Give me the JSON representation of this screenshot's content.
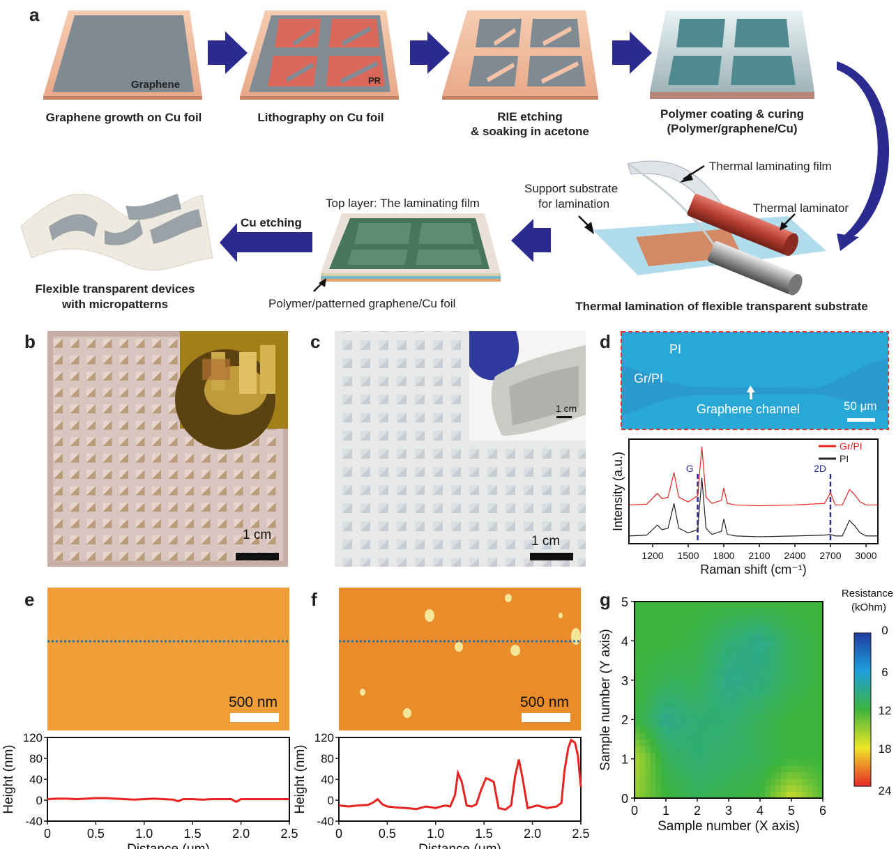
{
  "panel_letters": {
    "a": "a",
    "b": "b",
    "c": "c",
    "d": "d",
    "e": "e",
    "f": "f",
    "g": "g"
  },
  "panel_a": {
    "step1_caption": "Graphene growth on Cu foil",
    "step1_label": "Graphene",
    "step2_caption": "Lithography on Cu foil",
    "step2_label": "PR",
    "step3_caption_line1": "RIE etching",
    "step3_caption_line2": "& soaking in acetone",
    "step4_caption_line1": "Polymer coating & curing",
    "step4_caption_line2": "(Polymer/graphene/Cu)",
    "lamination_film_label": "Thermal laminating film",
    "support_substrate_line1": "Support substrate",
    "support_substrate_line2": "for lamination",
    "laminator_label": "Thermal laminator",
    "lamination_caption": "Thermal lamination of flexible transparent substrate",
    "top_layer_label": "Top layer: The laminating film",
    "bottom_layer_label": "Polymer/patterned graphene/Cu foil",
    "cu_etching_label": "Cu etching",
    "final_caption_line1": "Flexible transparent devices",
    "final_caption_line2": "with micropatterns"
  },
  "panel_b": {
    "scalebar": "1 cm"
  },
  "panel_c": {
    "scalebar": "1 cm",
    "inset_scalebar": "1 cm"
  },
  "panel_d": {
    "image_labels": {
      "pi": "PI",
      "gr_pi": "Gr/PI",
      "channel": "Graphene channel",
      "scalebar": "50 μm"
    }
  },
  "panel_e": {
    "scalebar": "500 nm"
  },
  "panel_f": {
    "scalebar": "500 nm"
  },
  "chart_data": [
    {
      "id": "d-raman",
      "type": "line",
      "xlabel": "Raman shift (cm⁻¹)",
      "ylabel": "Intensity (a.u.)",
      "xlim": [
        1000,
        3100
      ],
      "xticks": [
        1200,
        1500,
        1800,
        2100,
        2400,
        2700,
        3000
      ],
      "legend_position": "top-right",
      "annotations": [
        {
          "text": "G",
          "x": 1580
        },
        {
          "text": "2D",
          "x": 2700
        }
      ],
      "series": [
        {
          "name": "Gr/PI",
          "color": "#e8231f",
          "x": [
            1000,
            1150,
            1240,
            1280,
            1330,
            1380,
            1420,
            1500,
            1580,
            1615,
            1650,
            1700,
            1780,
            1800,
            1830,
            1900,
            2100,
            2400,
            2650,
            2700,
            2740,
            2800,
            2860,
            2900,
            2950,
            3000,
            3100
          ],
          "y": [
            0.2,
            0.21,
            0.35,
            0.28,
            0.3,
            0.62,
            0.3,
            0.24,
            0.32,
            0.95,
            0.3,
            0.22,
            0.26,
            0.42,
            0.22,
            0.2,
            0.19,
            0.2,
            0.22,
            0.36,
            0.2,
            0.2,
            0.4,
            0.34,
            0.24,
            0.2,
            0.2
          ]
        },
        {
          "name": "PI",
          "color": "#222222",
          "x": [
            1000,
            1150,
            1240,
            1280,
            1330,
            1380,
            1420,
            1500,
            1580,
            1615,
            1650,
            1700,
            1780,
            1800,
            1830,
            1900,
            2100,
            2400,
            2650,
            2700,
            2740,
            2800,
            2860,
            2900,
            2950,
            3000,
            3100
          ],
          "y": [
            -0.2,
            -0.19,
            -0.06,
            -0.12,
            -0.1,
            0.22,
            -0.1,
            -0.16,
            -0.12,
            0.55,
            -0.1,
            -0.18,
            -0.14,
            0.02,
            -0.18,
            -0.2,
            -0.21,
            -0.2,
            -0.19,
            -0.18,
            -0.2,
            -0.2,
            0.0,
            -0.06,
            -0.16,
            -0.2,
            -0.2
          ]
        }
      ]
    },
    {
      "id": "e-profile",
      "type": "line",
      "xlabel": "Distance (μm)",
      "ylabel": "Height (nm)",
      "xlim": [
        0,
        2.5
      ],
      "ylim": [
        -40,
        120
      ],
      "xticks": [
        0,
        0.5,
        1.0,
        1.5,
        2.0,
        2.5
      ],
      "yticks": [
        -40,
        0,
        40,
        80,
        120
      ],
      "series": [
        {
          "color": "#e8231f",
          "x": [
            0,
            0.1,
            0.2,
            0.3,
            0.4,
            0.5,
            0.6,
            0.7,
            0.8,
            0.9,
            1.0,
            1.1,
            1.2,
            1.3,
            1.35,
            1.4,
            1.5,
            1.6,
            1.7,
            1.8,
            1.9,
            1.95,
            2.0,
            2.1,
            2.2,
            2.3,
            2.4,
            2.5
          ],
          "y": [
            2,
            3,
            3,
            2,
            3,
            4,
            4,
            3,
            2,
            1,
            2,
            3,
            2,
            1,
            -2,
            2,
            2,
            1,
            2,
            2,
            2,
            -3,
            2,
            2,
            2,
            2,
            2,
            2
          ]
        }
      ]
    },
    {
      "id": "f-profile",
      "type": "line",
      "xlabel": "Distance (μm)",
      "ylabel": "Height (nm)",
      "xlim": [
        0,
        2.5
      ],
      "ylim": [
        -40,
        120
      ],
      "xticks": [
        0,
        0.5,
        1.0,
        1.5,
        2.0,
        2.5
      ],
      "yticks": [
        -40,
        0,
        40,
        80,
        120
      ],
      "series": [
        {
          "color": "#e8231f",
          "x": [
            0,
            0.1,
            0.2,
            0.3,
            0.35,
            0.4,
            0.45,
            0.5,
            0.6,
            0.7,
            0.8,
            0.9,
            1.0,
            1.1,
            1.15,
            1.2,
            1.23,
            1.27,
            1.32,
            1.37,
            1.42,
            1.47,
            1.52,
            1.55,
            1.6,
            1.65,
            1.72,
            1.78,
            1.82,
            1.86,
            1.9,
            1.95,
            2.05,
            2.15,
            2.25,
            2.3,
            2.33,
            2.37,
            2.4,
            2.44,
            2.47,
            2.5
          ],
          "y": [
            -10,
            -12,
            -10,
            -9,
            -5,
            2,
            -8,
            -12,
            -14,
            -15,
            -17,
            -12,
            -15,
            -10,
            -12,
            10,
            52,
            35,
            -10,
            -12,
            -8,
            20,
            42,
            40,
            35,
            -15,
            -18,
            -10,
            45,
            78,
            40,
            -15,
            -10,
            -15,
            -12,
            -5,
            55,
            100,
            115,
            110,
            85,
            25
          ]
        }
      ]
    },
    {
      "id": "g-map",
      "type": "heatmap",
      "xlabel": "Sample number (X axis)",
      "ylabel": "Sample number (Y axis)",
      "xlim": [
        0,
        6
      ],
      "ylim": [
        0,
        5
      ],
      "xticks": [
        0,
        1,
        2,
        3,
        4,
        5,
        6
      ],
      "yticks": [
        0,
        1,
        2,
        3,
        4,
        5
      ],
      "colorbar": {
        "title_line1": "Resistance",
        "title_line2": "(kOhm)",
        "ticks": [
          0,
          6,
          12,
          18,
          24
        ],
        "range": [
          0,
          24
        ]
      },
      "z_rows_y0_to_y5": [
        [
          15,
          12,
          11,
          11.5,
          12,
          17,
          13
        ],
        [
          16,
          11,
          10,
          10.5,
          11,
          12,
          12
        ],
        [
          12,
          9,
          10,
          10,
          11,
          12,
          12
        ],
        [
          12,
          11,
          11,
          9,
          9.5,
          11,
          12
        ],
        [
          12,
          12,
          11.5,
          10,
          9,
          11,
          12
        ],
        [
          12,
          12,
          12,
          12,
          12,
          12,
          12
        ]
      ]
    }
  ]
}
